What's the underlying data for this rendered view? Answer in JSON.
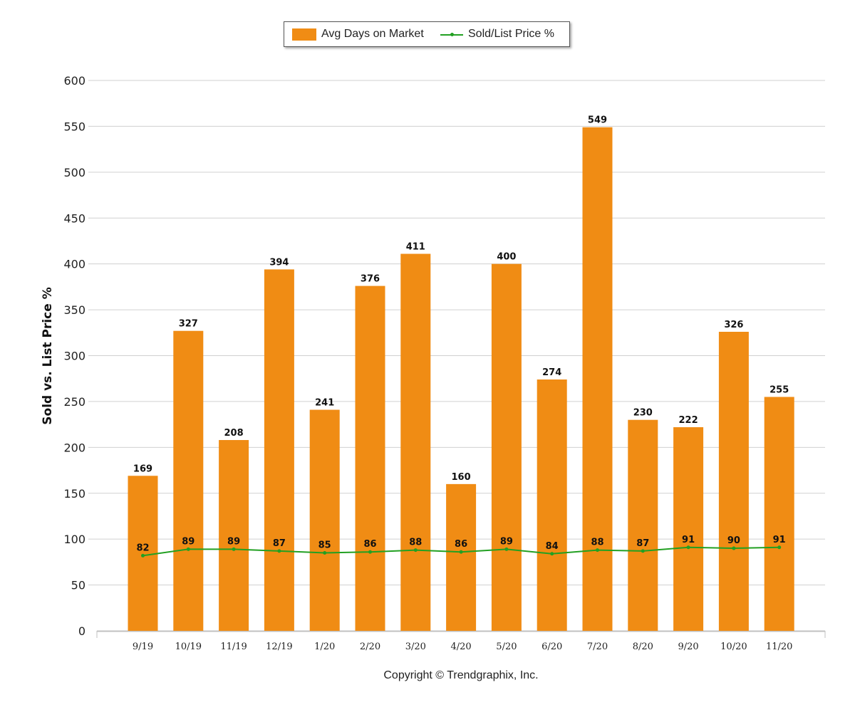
{
  "legend": {
    "bar_label": "Avg Days on Market",
    "line_label": "Sold/List Price %"
  },
  "copyright": "Copyright © Trendgraphix, Inc.",
  "chart_data": {
    "type": "bar",
    "title": "",
    "xlabel": "",
    "ylabel": "Sold vs. List Price %",
    "ylim": [
      0,
      600
    ],
    "yticks": [
      0,
      50,
      100,
      150,
      200,
      250,
      300,
      350,
      400,
      450,
      500,
      550,
      600
    ],
    "grid": true,
    "legend_position": "top-center",
    "categories": [
      "9/19",
      "10/19",
      "11/19",
      "12/19",
      "1/20",
      "2/20",
      "3/20",
      "4/20",
      "5/20",
      "6/20",
      "7/20",
      "8/20",
      "9/20",
      "10/20",
      "11/20"
    ],
    "series": [
      {
        "name": "Avg Days on Market",
        "type": "bar",
        "color": "#F08C14",
        "values": [
          169,
          327,
          208,
          394,
          241,
          376,
          411,
          160,
          400,
          274,
          549,
          230,
          222,
          326,
          255
        ]
      },
      {
        "name": "Sold/List Price %",
        "type": "line",
        "color": "#22A022",
        "values": [
          82,
          89,
          89,
          87,
          85,
          86,
          88,
          86,
          89,
          84,
          88,
          87,
          91,
          90,
          91
        ]
      }
    ]
  }
}
